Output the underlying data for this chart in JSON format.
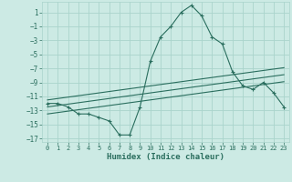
{
  "x": [
    0,
    1,
    2,
    3,
    4,
    5,
    6,
    7,
    8,
    9,
    10,
    11,
    12,
    13,
    14,
    15,
    16,
    17,
    18,
    19,
    20,
    21,
    22,
    23
  ],
  "humidex": [
    -12,
    -12,
    -12.5,
    -13.5,
    -13.5,
    -14,
    -14.5,
    -16.5,
    -16.5,
    -12.5,
    -6,
    -2.5,
    -1,
    1,
    2,
    0.5,
    -2.5,
    -3.5,
    -7.5,
    -9.5,
    -10,
    -9,
    -10.5,
    -12.5
  ],
  "line1": [
    -11.5,
    -11.3,
    -11.1,
    -10.9,
    -10.7,
    -10.5,
    -10.3,
    -10.1,
    -9.9,
    -9.7,
    -9.5,
    -9.3,
    -9.1,
    -8.9,
    -8.7,
    -8.5,
    -8.3,
    -8.1,
    -7.9,
    -7.7,
    -7.5,
    -7.3,
    -7.1,
    -6.9
  ],
  "line2": [
    -12.5,
    -12.3,
    -12.1,
    -11.9,
    -11.7,
    -11.5,
    -11.3,
    -11.1,
    -10.9,
    -10.7,
    -10.5,
    -10.3,
    -10.1,
    -9.9,
    -9.7,
    -9.5,
    -9.3,
    -9.1,
    -8.9,
    -8.7,
    -8.5,
    -8.3,
    -8.1,
    -7.9
  ],
  "line3": [
    -13.5,
    -13.3,
    -13.1,
    -12.9,
    -12.7,
    -12.5,
    -12.3,
    -12.1,
    -11.9,
    -11.7,
    -11.5,
    -11.3,
    -11.1,
    -10.9,
    -10.7,
    -10.5,
    -10.3,
    -10.1,
    -9.9,
    -9.7,
    -9.5,
    -9.3,
    -9.1,
    -8.9
  ],
  "bg_color": "#cceae4",
  "grid_color": "#aad4cc",
  "line_color": "#2a6e5e",
  "xlim": [
    -0.5,
    23.5
  ],
  "ylim": [
    -17.5,
    2.5
  ],
  "yticks": [
    1,
    -1,
    -3,
    -5,
    -7,
    -9,
    -11,
    -13,
    -15,
    -17
  ],
  "xticks": [
    0,
    1,
    2,
    3,
    4,
    5,
    6,
    7,
    8,
    9,
    10,
    11,
    12,
    13,
    14,
    15,
    16,
    17,
    18,
    19,
    20,
    21,
    22,
    23
  ],
  "xlabel": "Humidex (Indice chaleur)"
}
